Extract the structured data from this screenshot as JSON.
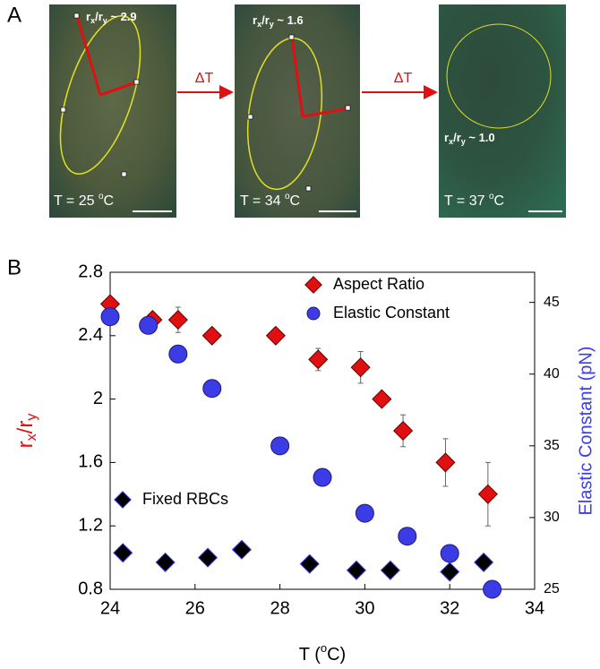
{
  "panel_labels": [
    "A",
    "B"
  ],
  "panel_a": {
    "arrow_labels": [
      "ΔT",
      "ΔT"
    ],
    "images": [
      {
        "ratio_label": [
          "r",
          "x",
          "/r",
          "y",
          " ~ 2.9"
        ],
        "temp_label": [
          "T = 25 ",
          "o",
          "C"
        ]
      },
      {
        "ratio_label": [
          "r",
          "x",
          "/r",
          "y",
          " ~ 1.6"
        ],
        "temp_label": [
          "T = 34 ",
          "o",
          "C"
        ]
      },
      {
        "ratio_label": [
          "r",
          "x",
          "/r",
          "y",
          " ~ 1.0"
        ],
        "temp_label": [
          "T = 37 ",
          "o",
          "C"
        ]
      }
    ]
  },
  "chart_data": {
    "type": "scatter",
    "xlabel": [
      "T (",
      "o",
      "C)"
    ],
    "ylabel": [
      "r",
      "x",
      "/r",
      "y"
    ],
    "y2label": "Elastic Constant (pN)",
    "xlim": [
      24,
      34
    ],
    "xticks": [
      24,
      26,
      28,
      30,
      32,
      34
    ],
    "ylim": [
      0.8,
      2.8
    ],
    "yticks": [
      0.8,
      1.2,
      1.6,
      2,
      2.4,
      2.8
    ],
    "y2lim": [
      25,
      47.1
    ],
    "y2ticks": [
      25,
      30,
      35,
      40,
      45
    ],
    "series": [
      {
        "name": "Aspect Ratio",
        "color": "#e01010",
        "marker": "diamond",
        "x": [
          24.0,
          25.0,
          25.6,
          26.4,
          27.9,
          28.9,
          29.9,
          30.4,
          30.9,
          31.9,
          32.9
        ],
        "values": [
          2.6,
          2.5,
          2.5,
          2.4,
          2.4,
          2.25,
          2.2,
          2.0,
          1.8,
          1.6,
          1.4
        ],
        "errors": [
          null,
          null,
          0.08,
          null,
          null,
          0.07,
          0.1,
          null,
          0.1,
          0.15,
          0.2
        ]
      },
      {
        "name": "Elastic Constant",
        "color": "#3c3ce6",
        "marker": "circle",
        "axis": "y2",
        "x": [
          24.0,
          24.9,
          25.6,
          26.4,
          28.0,
          29.0,
          30.0,
          31.0,
          32.0,
          33.0
        ],
        "values": [
          44,
          43.4,
          41.4,
          39,
          35,
          32.8,
          30.3,
          28.7,
          27.5,
          25
        ]
      },
      {
        "name": "Fixed RBCs",
        "color": "#000000",
        "marker": "diamond",
        "x": [
          24.3,
          25.3,
          26.3,
          27.1,
          28.7,
          29.8,
          30.6,
          32.0,
          32.8
        ],
        "values": [
          1.03,
          0.97,
          1.0,
          1.05,
          0.96,
          0.92,
          0.92,
          0.91,
          0.97
        ]
      }
    ]
  }
}
